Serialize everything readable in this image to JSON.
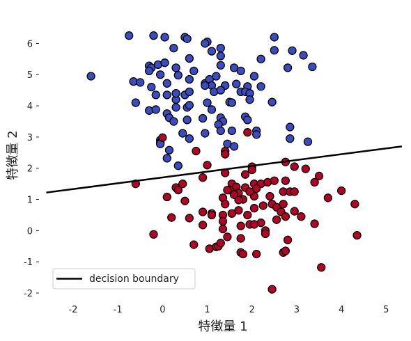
{
  "chart_data": {
    "type": "scatter",
    "xlabel": "特徴量 1",
    "ylabel": "特徴量 2",
    "xlim": [
      -2.7,
      5.4
    ],
    "ylim": [
      -2.2,
      6.5
    ],
    "xticks": [
      -2,
      -1,
      0,
      1,
      2,
      3,
      4,
      5
    ],
    "yticks": [
      -2,
      -1,
      0,
      1,
      2,
      3,
      4,
      5,
      6
    ],
    "grid": false,
    "legend": {
      "position": "lower-left",
      "entries": [
        "decision boundary"
      ]
    },
    "colors": {
      "class0": "#3b4cc0",
      "class1": "#b40426",
      "edge": "#000000",
      "line": "#000000"
    },
    "boundary": {
      "label": "decision boundary",
      "points": [
        [
          -2.6,
          1.22
        ],
        [
          5.35,
          2.7
        ]
      ]
    },
    "series": [
      {
        "class": 0,
        "points": [
          [
            -0.75,
            6.25
          ],
          [
            -0.2,
            6.25
          ],
          [
            0.05,
            6.2
          ],
          [
            0.5,
            6.2
          ],
          [
            0.55,
            6.15
          ],
          [
            1.0,
            6.05
          ],
          [
            0.95,
            6.0
          ],
          [
            1.3,
            5.85
          ],
          [
            1.1,
            5.75
          ],
          [
            1.3,
            5.6
          ],
          [
            0.25,
            5.85
          ],
          [
            2.5,
            6.2
          ],
          [
            2.5,
            5.78
          ],
          [
            2.9,
            5.77
          ],
          [
            3.15,
            5.62
          ],
          [
            2.2,
            5.5
          ],
          [
            -0.3,
            5.28
          ],
          [
            -0.25,
            5.22
          ],
          [
            -0.3,
            5.12
          ],
          [
            -0.1,
            5.32
          ],
          [
            0.05,
            5.38
          ],
          [
            0.3,
            5.22
          ],
          [
            0.6,
            5.52
          ],
          [
            0.7,
            5.12
          ],
          [
            1.3,
            5.3
          ],
          [
            1.6,
            5.22
          ],
          [
            1.75,
            5.12
          ],
          [
            2.05,
            4.95
          ],
          [
            2.8,
            5.22
          ],
          [
            3.35,
            5.25
          ],
          [
            -1.6,
            4.95
          ],
          [
            -0.65,
            4.78
          ],
          [
            -0.5,
            4.75
          ],
          [
            -0.25,
            4.6
          ],
          [
            -0.05,
            5.0
          ],
          [
            0.1,
            4.72
          ],
          [
            0.35,
            4.98
          ],
          [
            0.6,
            4.85
          ],
          [
            0.95,
            4.72
          ],
          [
            1.05,
            4.85
          ],
          [
            1.1,
            4.65
          ],
          [
            1.2,
            4.95
          ],
          [
            1.4,
            4.65
          ],
          [
            1.65,
            4.7
          ],
          [
            1.9,
            4.62
          ],
          [
            2.2,
            4.62
          ],
          [
            -0.6,
            4.1
          ],
          [
            -0.3,
            3.85
          ],
          [
            -0.15,
            3.88
          ],
          [
            -0.15,
            4.35
          ],
          [
            0.1,
            4.35
          ],
          [
            0.3,
            4.2
          ],
          [
            0.3,
            4.4
          ],
          [
            0.5,
            4.35
          ],
          [
            0.6,
            4.45
          ],
          [
            0.95,
            4.65
          ],
          [
            1.15,
            4.45
          ],
          [
            1.3,
            4.5
          ],
          [
            1.5,
            4.12
          ],
          [
            1.55,
            4.1
          ],
          [
            1.75,
            4.45
          ],
          [
            1.85,
            4.45
          ],
          [
            1.95,
            4.4
          ],
          [
            1.95,
            4.2
          ],
          [
            2.45,
            4.12
          ],
          [
            0.3,
            3.95
          ],
          [
            0.55,
            3.95
          ],
          [
            0.6,
            4.02
          ],
          [
            1.0,
            4.1
          ],
          [
            1.1,
            3.88
          ],
          [
            0.1,
            3.75
          ],
          [
            0.15,
            3.62
          ],
          [
            0.25,
            3.5
          ],
          [
            0.55,
            3.55
          ],
          [
            0.9,
            3.6
          ],
          [
            1.3,
            3.62
          ],
          [
            1.35,
            3.5
          ],
          [
            1.85,
            3.65
          ],
          [
            1.9,
            3.55
          ],
          [
            1.25,
            3.4
          ],
          [
            1.3,
            3.2
          ],
          [
            0.45,
            3.12
          ],
          [
            0.6,
            2.95
          ],
          [
            0.95,
            3.12
          ],
          [
            1.55,
            3.2
          ],
          [
            2.1,
            3.2
          ],
          [
            2.1,
            3.08
          ],
          [
            2.85,
            3.32
          ],
          [
            2.85,
            2.95
          ],
          [
            3.25,
            2.85
          ],
          [
            -0.05,
            2.9
          ],
          [
            -0.05,
            2.82
          ],
          [
            -0.05,
            2.78
          ],
          [
            0.15,
            2.58
          ],
          [
            0.1,
            2.32
          ],
          [
            0.35,
            2.08
          ],
          [
            1.45,
            2.78
          ],
          [
            1.6,
            2.7
          ]
        ]
      },
      {
        "class": 1,
        "points": [
          [
            0.0,
            2.98
          ],
          [
            0.75,
            2.55
          ],
          [
            1.4,
            2.55
          ],
          [
            1.4,
            2.45
          ],
          [
            1.9,
            3.15
          ],
          [
            2.75,
            2.2
          ],
          [
            2.95,
            2.05
          ],
          [
            3.2,
            1.98
          ],
          [
            3.5,
            1.75
          ],
          [
            2.0,
            2.05
          ],
          [
            2.0,
            1.95
          ],
          [
            1.0,
            2.1
          ],
          [
            1.4,
            1.85
          ],
          [
            1.85,
            1.8
          ],
          [
            -0.6,
            1.5
          ],
          [
            0.3,
            1.38
          ],
          [
            0.35,
            1.3
          ],
          [
            0.45,
            1.5
          ],
          [
            0.9,
            1.7
          ],
          [
            1.55,
            1.5
          ],
          [
            1.65,
            1.4
          ],
          [
            1.5,
            1.3
          ],
          [
            1.7,
            1.2
          ],
          [
            1.85,
            1.38
          ],
          [
            2.05,
            1.5
          ],
          [
            2.2,
            1.5
          ],
          [
            2.1,
            1.35
          ],
          [
            2.35,
            1.55
          ],
          [
            2.5,
            1.6
          ],
          [
            2.75,
            1.6
          ],
          [
            2.7,
            1.25
          ],
          [
            2.85,
            1.25
          ],
          [
            2.95,
            1.25
          ],
          [
            2.4,
            1.1
          ],
          [
            2.05,
            1.1
          ],
          [
            1.95,
            1.25
          ],
          [
            1.8,
            1.0
          ],
          [
            1.7,
            0.98
          ],
          [
            1.6,
            1.15
          ],
          [
            1.45,
            1.3
          ],
          [
            1.35,
            1.05
          ],
          [
            0.1,
            1.08
          ],
          [
            0.5,
            0.95
          ],
          [
            0.2,
            0.42
          ],
          [
            0.6,
            0.4
          ],
          [
            0.9,
            0.6
          ],
          [
            1.1,
            0.55
          ],
          [
            1.1,
            0.5
          ],
          [
            1.35,
            0.5
          ],
          [
            1.4,
            0.85
          ],
          [
            1.55,
            0.55
          ],
          [
            1.7,
            0.65
          ],
          [
            1.9,
            0.5
          ],
          [
            2.05,
            0.72
          ],
          [
            2.25,
            0.8
          ],
          [
            2.45,
            0.85
          ],
          [
            2.55,
            0.75
          ],
          [
            2.7,
            0.85
          ],
          [
            2.65,
            0.6
          ],
          [
            2.95,
            0.62
          ],
          [
            3.1,
            0.45
          ],
          [
            2.75,
            0.45
          ],
          [
            2.55,
            0.35
          ],
          [
            2.2,
            0.25
          ],
          [
            1.95,
            0.2
          ],
          [
            1.75,
            0.15
          ],
          [
            0.9,
            0.18
          ],
          [
            1.35,
            0.3
          ],
          [
            1.35,
            0.05
          ],
          [
            2.05,
            0.2
          ],
          [
            2.3,
            0.0
          ],
          [
            2.3,
            -0.1
          ],
          [
            2.8,
            -0.3
          ],
          [
            -0.2,
            -0.12
          ],
          [
            0.7,
            -0.45
          ],
          [
            1.05,
            -0.58
          ],
          [
            1.2,
            -0.52
          ],
          [
            1.25,
            -0.5
          ],
          [
            1.3,
            -0.4
          ],
          [
            1.45,
            -0.2
          ],
          [
            1.75,
            -0.25
          ],
          [
            1.75,
            -0.7
          ],
          [
            1.8,
            -0.75
          ],
          [
            2.1,
            -0.75
          ],
          [
            2.7,
            -0.7
          ],
          [
            2.75,
            -0.65
          ],
          [
            3.55,
            -1.18
          ],
          [
            2.45,
            -1.88
          ],
          [
            3.7,
            1.05
          ],
          [
            4.0,
            1.28
          ],
          [
            3.4,
            1.55
          ],
          [
            4.3,
            0.85
          ],
          [
            3.4,
            0.22
          ],
          [
            4.35,
            -0.15
          ]
        ]
      }
    ]
  }
}
